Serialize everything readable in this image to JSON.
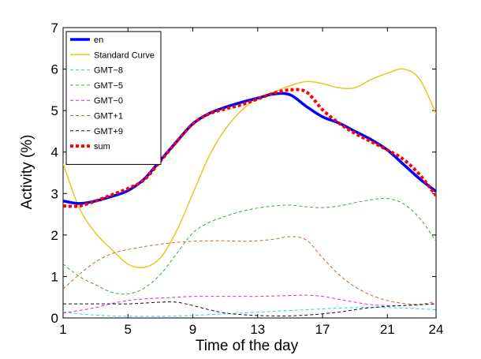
{
  "chart_data": {
    "type": "line",
    "title": "",
    "xlabel": "Time of the day",
    "ylabel": "Activity (%)",
    "xlim": [
      1,
      24
    ],
    "ylim": [
      0,
      7
    ],
    "xticks": [
      1,
      5,
      9,
      13,
      17,
      21,
      24
    ],
    "yticks": [
      0,
      1,
      2,
      3,
      4,
      5,
      6,
      7
    ],
    "grid": false,
    "legend_position": "top-left",
    "x": [
      1,
      2,
      3,
      4,
      5,
      6,
      7,
      8,
      9,
      10,
      11,
      12,
      13,
      14,
      15,
      16,
      17,
      18,
      19,
      20,
      21,
      22,
      23,
      24
    ],
    "series": [
      {
        "name": "en",
        "color": "#0000ff",
        "dash": "solid",
        "width": 3.5,
        "values": [
          2.82,
          2.76,
          2.82,
          2.93,
          3.07,
          3.35,
          3.8,
          4.25,
          4.68,
          4.93,
          5.08,
          5.2,
          5.3,
          5.4,
          5.38,
          5.1,
          4.85,
          4.7,
          4.5,
          4.3,
          4.05,
          3.7,
          3.35,
          3.05
        ]
      },
      {
        "name": "Standard Curve",
        "color": "#e6c81e",
        "dash": "solid",
        "width": 1.5,
        "values": [
          3.72,
          2.65,
          2.05,
          1.65,
          1.3,
          1.22,
          1.45,
          2.1,
          3.0,
          3.9,
          4.55,
          5.0,
          5.3,
          5.45,
          5.6,
          5.7,
          5.65,
          5.55,
          5.55,
          5.75,
          5.9,
          6.0,
          5.75,
          4.92
        ]
      },
      {
        "name": "GMT−8",
        "color": "#2ad4d4",
        "dash": "dash",
        "width": 1,
        "values": [
          0.15,
          0.1,
          0.07,
          0.05,
          0.04,
          0.04,
          0.04,
          0.05,
          0.06,
          0.08,
          0.1,
          0.12,
          0.14,
          0.16,
          0.18,
          0.2,
          0.22,
          0.24,
          0.25,
          0.26,
          0.25,
          0.24,
          0.22,
          0.2
        ]
      },
      {
        "name": "GMT−5",
        "color": "#3aa63a",
        "dash": "dash",
        "width": 1,
        "values": [
          1.3,
          1.0,
          0.8,
          0.62,
          0.58,
          0.72,
          1.05,
          1.55,
          2.05,
          2.3,
          2.45,
          2.57,
          2.65,
          2.7,
          2.72,
          2.68,
          2.66,
          2.7,
          2.78,
          2.85,
          2.88,
          2.75,
          2.4,
          1.85
        ]
      },
      {
        "name": "GMT−0",
        "color": "#e61ee6",
        "dash": "dash",
        "width": 1,
        "values": [
          0.12,
          0.18,
          0.25,
          0.35,
          0.42,
          0.46,
          0.48,
          0.5,
          0.52,
          0.52,
          0.52,
          0.52,
          0.52,
          0.53,
          0.54,
          0.55,
          0.52,
          0.45,
          0.38,
          0.32,
          0.3,
          0.3,
          0.32,
          0.35
        ]
      },
      {
        "name": "GMT+1",
        "color": "#c86432",
        "dash": "dash",
        "width": 1,
        "values": [
          0.7,
          1.05,
          1.35,
          1.55,
          1.65,
          1.72,
          1.78,
          1.82,
          1.85,
          1.86,
          1.86,
          1.85,
          1.86,
          1.9,
          1.96,
          1.88,
          1.45,
          1.05,
          0.75,
          0.55,
          0.42,
          0.35,
          0.33,
          0.4
        ]
      },
      {
        "name": "GMT+9",
        "color": "#111111",
        "dash": "dash",
        "width": 1,
        "values": [
          0.34,
          0.34,
          0.34,
          0.34,
          0.34,
          0.36,
          0.38,
          0.38,
          0.3,
          0.2,
          0.12,
          0.08,
          0.06,
          0.05,
          0.05,
          0.07,
          0.1,
          0.14,
          0.2,
          0.25,
          0.28,
          0.3,
          0.32,
          0.34
        ]
      },
      {
        "name": "sum",
        "color": "#ff0000",
        "dash": "dot",
        "width": 4,
        "values": [
          2.7,
          2.7,
          2.82,
          2.97,
          3.12,
          3.33,
          3.78,
          4.25,
          4.68,
          4.92,
          5.04,
          5.14,
          5.28,
          5.42,
          5.5,
          5.45,
          5.02,
          4.7,
          4.45,
          4.25,
          4.05,
          3.82,
          3.45,
          2.95
        ]
      }
    ]
  }
}
